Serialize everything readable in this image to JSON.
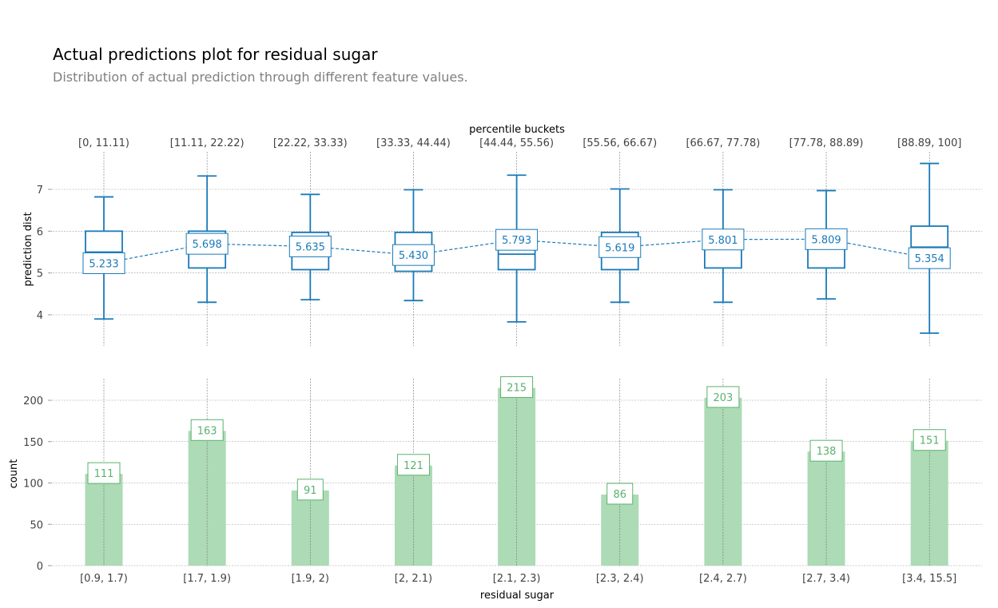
{
  "title": "Actual predictions plot for residual sugar",
  "subtitle": "Distribution of actual prediction through different feature values.",
  "colors": {
    "box": "#1A7AB9",
    "bar": "#ACDBB6",
    "count_label": "#5BB26D",
    "grid": "#9E9E9E"
  },
  "chart_data": [
    {
      "type": "box",
      "top_axis_label": "percentile buckets",
      "top_tick_labels": [
        "[0, 11.11)",
        "[11.11, 22.22)",
        "[22.22, 33.33)",
        "[33.33, 44.44)",
        "[44.44, 55.56)",
        "[55.56, 66.67)",
        "[66.67, 77.78)",
        "[77.78, 88.89)",
        "[88.89, 100]"
      ],
      "ylabel": "prediction dist",
      "ylim": [
        3.25,
        7.85
      ],
      "yticks": [
        4,
        5,
        6,
        7
      ],
      "grid": true,
      "boxes": [
        {
          "whisker_low": 3.9,
          "q1": 5.3,
          "median": 5.5,
          "q3": 6.0,
          "whisker_high": 6.82,
          "mean": 5.233,
          "mean_label": "5.233"
        },
        {
          "whisker_low": 4.3,
          "q1": 5.12,
          "median": 5.62,
          "q3": 6.0,
          "whisker_high": 7.32,
          "mean": 5.698,
          "mean_label": "5.698"
        },
        {
          "whisker_low": 4.36,
          "q1": 5.08,
          "median": 5.5,
          "q3": 5.97,
          "whisker_high": 6.88,
          "mean": 5.635,
          "mean_label": "5.635"
        },
        {
          "whisker_low": 4.34,
          "q1": 5.04,
          "median": 5.6,
          "q3": 5.97,
          "whisker_high": 6.99,
          "mean": 5.43,
          "mean_label": "5.430"
        },
        {
          "whisker_low": 3.83,
          "q1": 5.08,
          "median": 5.45,
          "q3": 6.02,
          "whisker_high": 7.34,
          "mean": 5.793,
          "mean_label": "5.793"
        },
        {
          "whisker_low": 4.3,
          "q1": 5.08,
          "median": 5.48,
          "q3": 5.97,
          "whisker_high": 7.01,
          "mean": 5.619,
          "mean_label": "5.619"
        },
        {
          "whisker_low": 4.3,
          "q1": 5.12,
          "median": 5.62,
          "q3": 6.02,
          "whisker_high": 6.99,
          "mean": 5.801,
          "mean_label": "5.801"
        },
        {
          "whisker_low": 4.38,
          "q1": 5.12,
          "median": 5.62,
          "q3": 6.02,
          "whisker_high": 6.97,
          "mean": 5.809,
          "mean_label": "5.809"
        },
        {
          "whisker_low": 3.56,
          "q1": 5.12,
          "median": 5.62,
          "q3": 6.12,
          "whisker_high": 7.62,
          "mean": 5.354,
          "mean_label": "5.354"
        }
      ]
    },
    {
      "type": "bar",
      "xlabel": "residual sugar",
      "ylabel": "count",
      "categories": [
        "[0.9, 1.7)",
        "[1.7, 1.9)",
        "[1.9, 2)",
        "[2, 2.1)",
        "[2.1, 2.3)",
        "[2.3, 2.4)",
        "[2.4, 2.7)",
        "[2.7, 3.4)",
        "[3.4, 15.5]"
      ],
      "values": [
        111,
        163,
        91,
        121,
        215,
        86,
        203,
        138,
        151
      ],
      "ylim": [
        0,
        226
      ],
      "yticks": [
        0,
        50,
        100,
        150,
        200
      ],
      "grid": true
    }
  ]
}
